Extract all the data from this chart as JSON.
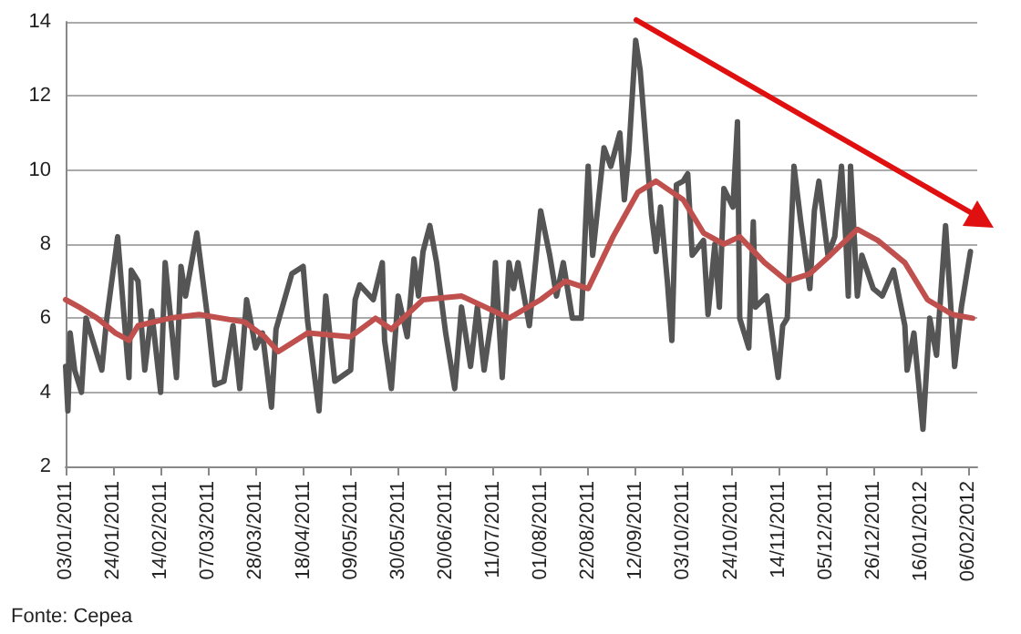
{
  "chart_data": {
    "type": "line",
    "xlim": [
      "2011-01-03",
      "2012-02-10"
    ],
    "ylim": [
      2,
      14
    ],
    "yticks": [
      2,
      4,
      6,
      8,
      10,
      12,
      14
    ],
    "xticks": [
      {
        "value": "2011-01-03",
        "label": "03/01/2011"
      },
      {
        "value": "2011-01-24",
        "label": "24/01/2011"
      },
      {
        "value": "2011-02-14",
        "label": "14/02/2011"
      },
      {
        "value": "2011-03-07",
        "label": "07/03/2011"
      },
      {
        "value": "2011-03-28",
        "label": "28/03/2011"
      },
      {
        "value": "2011-04-18",
        "label": "18/04/2011"
      },
      {
        "value": "2011-05-09",
        "label": "09/05/2011"
      },
      {
        "value": "2011-05-30",
        "label": "30/05/2011"
      },
      {
        "value": "2011-06-20",
        "label": "20/06/2011"
      },
      {
        "value": "2011-07-11",
        "label": "11/07/2011"
      },
      {
        "value": "2011-08-01",
        "label": "01/08/2011"
      },
      {
        "value": "2011-08-22",
        "label": "22/08/2011"
      },
      {
        "value": "2011-09-12",
        "label": "12/09/2011"
      },
      {
        "value": "2011-10-03",
        "label": "03/10/2011"
      },
      {
        "value": "2011-10-24",
        "label": "24/10/2011"
      },
      {
        "value": "2011-11-14",
        "label": "14/11/2011"
      },
      {
        "value": "2011-12-05",
        "label": "05/12/2011"
      },
      {
        "value": "2011-12-26",
        "label": "26/12/2011"
      },
      {
        "value": "2012-01-16",
        "label": "16/01/2012"
      },
      {
        "value": "2012-02-06",
        "label": "06/02/2012"
      }
    ],
    "grid": "y",
    "marker": "none",
    "line_style": "solid",
    "annotations": [
      "Fonte: Cepea"
    ],
    "series": [
      {
        "color": "#555555",
        "x": [
          "2011-01-03",
          "2011-01-04",
          "2011-01-05",
          "2011-01-07",
          "2011-01-10",
          "2011-01-12",
          "2011-01-14",
          "2011-01-19",
          "2011-01-21",
          "2011-01-26",
          "2011-01-31",
          "2011-02-01",
          "2011-02-04",
          "2011-02-07",
          "2011-02-10",
          "2011-02-14",
          "2011-02-16",
          "2011-02-21",
          "2011-02-23",
          "2011-02-25",
          "2011-03-02",
          "2011-03-07",
          "2011-03-10",
          "2011-03-14",
          "2011-03-18",
          "2011-03-21",
          "2011-03-24",
          "2011-03-28",
          "2011-03-31",
          "2011-04-04",
          "2011-04-06",
          "2011-04-13",
          "2011-04-18",
          "2011-04-20",
          "2011-04-25",
          "2011-04-28",
          "2011-05-02",
          "2011-05-09",
          "2011-05-11",
          "2011-05-13",
          "2011-05-19",
          "2011-05-23",
          "2011-05-24",
          "2011-05-27",
          "2011-05-30",
          "2011-06-03",
          "2011-06-06",
          "2011-06-08",
          "2011-06-10",
          "2011-06-13",
          "2011-06-16",
          "2011-06-20",
          "2011-06-24",
          "2011-06-27",
          "2011-07-01",
          "2011-07-04",
          "2011-07-07",
          "2011-07-11",
          "2011-07-12",
          "2011-07-15",
          "2011-07-18",
          "2011-07-20",
          "2011-07-22",
          "2011-07-27",
          "2011-08-01",
          "2011-08-05",
          "2011-08-08",
          "2011-08-11",
          "2011-08-15",
          "2011-08-19",
          "2011-08-22",
          "2011-08-24",
          "2011-08-29",
          "2011-09-01",
          "2011-09-05",
          "2011-09-07",
          "2011-09-09",
          "2011-09-12",
          "2011-09-14",
          "2011-09-19",
          "2011-09-21",
          "2011-09-23",
          "2011-09-26",
          "2011-09-28",
          "2011-09-30",
          "2011-10-03",
          "2011-10-05",
          "2011-10-07",
          "2011-10-12",
          "2011-10-14",
          "2011-10-17",
          "2011-10-19",
          "2011-10-21",
          "2011-10-25",
          "2011-10-27",
          "2011-10-28",
          "2011-11-01",
          "2011-11-03",
          "2011-11-04",
          "2011-11-09",
          "2011-11-14",
          "2011-11-16",
          "2011-11-18",
          "2011-11-21",
          "2011-11-24",
          "2011-11-28",
          "2011-11-30",
          "2011-12-02",
          "2011-12-06",
          "2011-12-09",
          "2011-12-12",
          "2011-12-14",
          "2011-12-15",
          "2011-12-16",
          "2011-12-19",
          "2011-12-21",
          "2011-12-26",
          "2011-12-30",
          "2012-01-04",
          "2012-01-09",
          "2012-01-10",
          "2012-01-13",
          "2012-01-17",
          "2012-01-20",
          "2012-01-23",
          "2012-01-27",
          "2012-01-31",
          "2012-02-03",
          "2012-02-07"
        ],
        "values": [
          4.7,
          3.5,
          5.6,
          4.6,
          4.0,
          6.0,
          5.6,
          4.6,
          5.9,
          8.2,
          4.4,
          7.3,
          7.0,
          4.6,
          6.2,
          4.0,
          7.5,
          4.4,
          7.4,
          6.6,
          8.3,
          5.9,
          4.2,
          4.3,
          5.8,
          4.1,
          6.5,
          5.2,
          5.6,
          3.6,
          5.7,
          7.2,
          7.4,
          5.9,
          3.5,
          6.6,
          4.3,
          4.6,
          6.5,
          6.9,
          6.5,
          7.5,
          5.4,
          4.1,
          6.6,
          5.5,
          7.6,
          6.6,
          7.8,
          8.5,
          7.5,
          5.6,
          4.1,
          6.3,
          4.7,
          6.3,
          4.6,
          6.3,
          7.5,
          4.4,
          7.5,
          6.8,
          7.5,
          5.8,
          8.9,
          7.7,
          6.6,
          7.5,
          6.0,
          6.0,
          10.1,
          7.7,
          10.6,
          10.1,
          11.0,
          9.2,
          10.5,
          13.5,
          12.7,
          8.8,
          7.8,
          9.0,
          7.0,
          5.4,
          9.6,
          9.7,
          9.9,
          7.7,
          8.1,
          6.1,
          8.0,
          6.3,
          9.5,
          9.0,
          11.3,
          6.0,
          5.2,
          8.6,
          6.3,
          6.6,
          4.4,
          5.8,
          6.0,
          10.1,
          8.6,
          6.8,
          8.9,
          9.7,
          7.7,
          8.2,
          10.1,
          8.0,
          6.6,
          10.1,
          6.6,
          7.7,
          6.8,
          6.6,
          7.3,
          5.8,
          4.6,
          5.6,
          3.0,
          6.0,
          5.0,
          8.5,
          4.7,
          6.3,
          7.8
        ]
      },
      {
        "color": "#c0504d",
        "x": [
          "2011-01-03",
          "2011-01-09",
          "2011-01-17",
          "2011-01-25",
          "2011-01-31",
          "2011-02-04",
          "2011-02-18",
          "2011-03-03",
          "2011-03-23",
          "2011-04-01",
          "2011-04-07",
          "2011-04-20",
          "2011-05-09",
          "2011-05-20",
          "2011-05-27",
          "2011-06-10",
          "2011-06-27",
          "2011-07-18",
          "2011-08-01",
          "2011-08-12",
          "2011-08-22",
          "2011-09-02",
          "2011-09-13",
          "2011-09-21",
          "2011-10-03",
          "2011-10-12",
          "2011-10-21",
          "2011-10-28",
          "2011-11-08",
          "2011-11-18",
          "2011-11-28",
          "2011-12-07",
          "2011-12-19",
          "2011-12-28",
          "2012-01-09",
          "2012-01-19",
          "2012-01-30",
          "2012-02-08"
        ],
        "values": [
          6.5,
          6.3,
          6.0,
          5.6,
          5.4,
          5.8,
          6.0,
          6.1,
          5.9,
          5.5,
          5.1,
          5.6,
          5.5,
          6.0,
          5.7,
          6.5,
          6.6,
          6.0,
          6.5,
          7.0,
          6.8,
          8.2,
          9.4,
          9.7,
          9.2,
          8.3,
          8.0,
          8.2,
          7.5,
          7.0,
          7.2,
          7.7,
          8.4,
          8.1,
          7.5,
          6.5,
          6.1,
          6.0
        ]
      }
    ]
  }
}
